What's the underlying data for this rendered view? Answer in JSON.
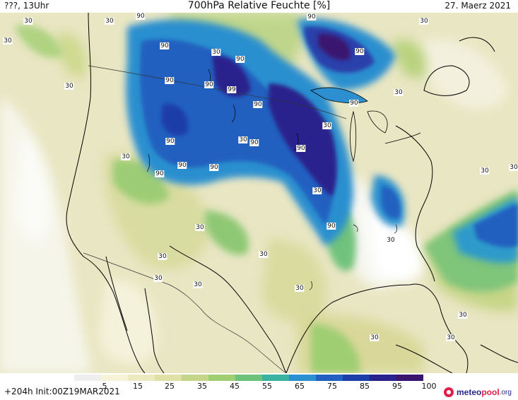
{
  "header": {
    "left_text": "???, 13Uhr",
    "title": "700hPa Relative Feuchte [%]",
    "date": "27. Maerz 2021"
  },
  "footer": {
    "run_info": "+204h  Init:00Z19MAR2021",
    "brand_name_a": "meteo",
    "brand_name_b": "pool",
    "brand_tld": ".org"
  },
  "colorbar": {
    "ticks": [
      "5",
      "15",
      "25",
      "35",
      "45",
      "55",
      "65",
      "75",
      "85",
      "95",
      "100"
    ],
    "colors": [
      "#eeeeee",
      "#f7f3d8",
      "#eeeac0",
      "#dfe0a6",
      "#c5d68a",
      "#9fcd72",
      "#6cc27b",
      "#39b2a2",
      "#2c8fcf",
      "#2260bf",
      "#1c3ea8",
      "#2a228c",
      "#3b1470"
    ]
  },
  "map": {
    "contour_labels": [
      {
        "text": "90"
      },
      {
        "text": "90"
      },
      {
        "text": "90"
      },
      {
        "text": "90"
      },
      {
        "text": "90"
      },
      {
        "text": "90"
      },
      {
        "text": "90"
      },
      {
        "text": "90"
      },
      {
        "text": "90"
      },
      {
        "text": "90"
      },
      {
        "text": "90"
      },
      {
        "text": "90"
      },
      {
        "text": "90"
      },
      {
        "text": "90"
      },
      {
        "text": "90"
      },
      {
        "text": "90"
      },
      {
        "text": "99"
      },
      {
        "text": "30"
      },
      {
        "text": "30"
      },
      {
        "text": "30"
      },
      {
        "text": "30"
      },
      {
        "text": "30"
      },
      {
        "text": "30"
      },
      {
        "text": "30"
      },
      {
        "text": "30"
      },
      {
        "text": "30"
      },
      {
        "text": "30"
      },
      {
        "text": "30"
      },
      {
        "text": "30"
      },
      {
        "text": "30"
      },
      {
        "text": "30"
      },
      {
        "text": "30"
      },
      {
        "text": "30"
      },
      {
        "text": "30"
      },
      {
        "text": "30"
      },
      {
        "text": "30"
      },
      {
        "text": "30"
      },
      {
        "text": "30"
      },
      {
        "text": "30"
      },
      {
        "text": "30"
      }
    ]
  }
}
